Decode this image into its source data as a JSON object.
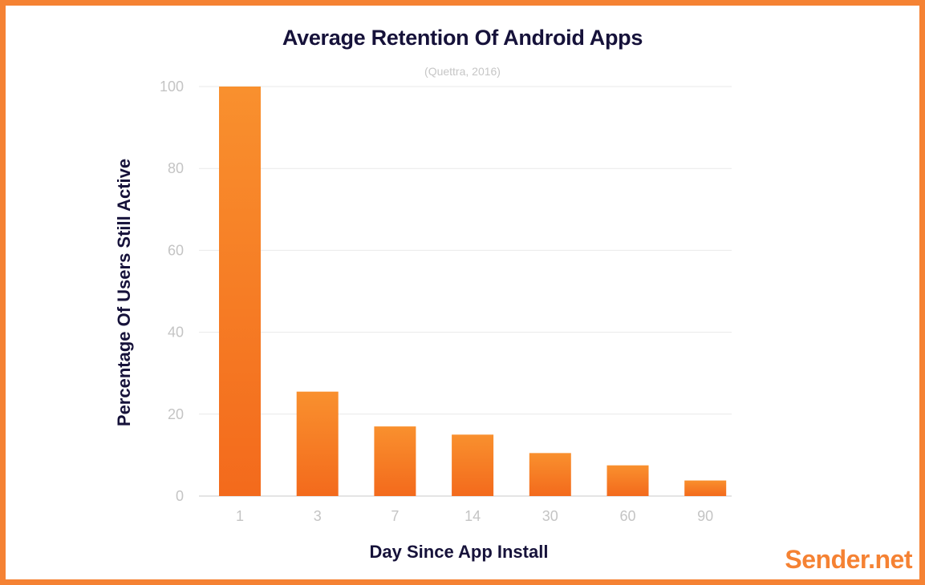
{
  "brand": "Sender.net",
  "colors": {
    "border": "#f58233",
    "bar": "#f47c22",
    "title": "#16123a",
    "tick": "#c4c4c4",
    "grid": "#e9e9e9",
    "brand": "#f58233"
  },
  "chart_data": {
    "type": "bar",
    "title": "Average Retention Of Android Apps",
    "subtitle": "(Quettra, 2016)",
    "xlabel": "Day Since App Install",
    "ylabel": "Percentage Of Users Still Active",
    "categories": [
      "1",
      "3",
      "7",
      "14",
      "30",
      "60",
      "90"
    ],
    "values": [
      100,
      25.5,
      17,
      15,
      10.5,
      7.5,
      3.8
    ],
    "ylim": [
      0,
      100
    ],
    "yticks": [
      0,
      20,
      40,
      60,
      80,
      100
    ],
    "grid": true,
    "legend": "none"
  }
}
